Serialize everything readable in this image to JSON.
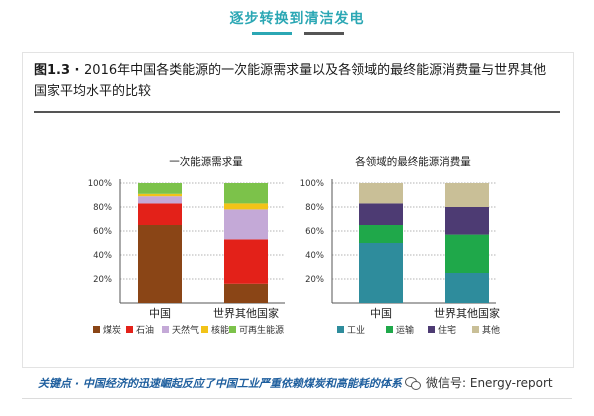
{
  "header": {
    "title": "逐步转换到清洁发电"
  },
  "figure": {
    "number": "图1.3 · ",
    "title": "2016年中国各类能源的一次能源需求量以及各领域的最终能源消费量与世界其他国家平均水平的比较"
  },
  "keypoint": "关键点 · 中国经济的迅速崛起反应了中国工业严重依赖煤炭和高能耗的体系",
  "watermark": "微信号: Energy-report",
  "colors": {
    "accent": "#2ba7b4"
  },
  "chart_data": [
    {
      "type": "bar",
      "stacked": true,
      "title": "一次能源需求量",
      "categories": [
        "中国",
        "世界其他国家"
      ],
      "ylim": [
        0,
        100
      ],
      "yticks": [
        "20%",
        "40%",
        "60%",
        "80%",
        "100%"
      ],
      "grid": true,
      "legend_position": "bottom",
      "series": [
        {
          "name": "煤炭",
          "color": "#8a4516",
          "values": [
            65,
            16
          ]
        },
        {
          "name": "石油",
          "color": "#e32119",
          "values": [
            18,
            37
          ]
        },
        {
          "name": "天然气",
          "color": "#c4a9d7",
          "values": [
            6,
            25
          ]
        },
        {
          "name": "核能",
          "color": "#f2c318",
          "values": [
            2,
            5
          ]
        },
        {
          "name": "可再生能源",
          "color": "#7cc24a",
          "values": [
            9,
            17
          ]
        }
      ]
    },
    {
      "type": "bar",
      "stacked": true,
      "title": "各领域的最终能源消费量",
      "categories": [
        "中国",
        "世界其他国家"
      ],
      "ylim": [
        0,
        100
      ],
      "yticks": [
        "20%",
        "40%",
        "60%",
        "80%",
        "100%"
      ],
      "grid": true,
      "legend_position": "bottom",
      "series": [
        {
          "name": "工业",
          "color": "#2e8c9c",
          "values": [
            50,
            25
          ]
        },
        {
          "name": "运输",
          "color": "#1fa84a",
          "values": [
            15,
            32
          ]
        },
        {
          "name": "住宅",
          "color": "#4d3b73",
          "values": [
            18,
            23
          ]
        },
        {
          "name": "其他",
          "color": "#c9bf97",
          "values": [
            17,
            20
          ]
        }
      ]
    }
  ]
}
